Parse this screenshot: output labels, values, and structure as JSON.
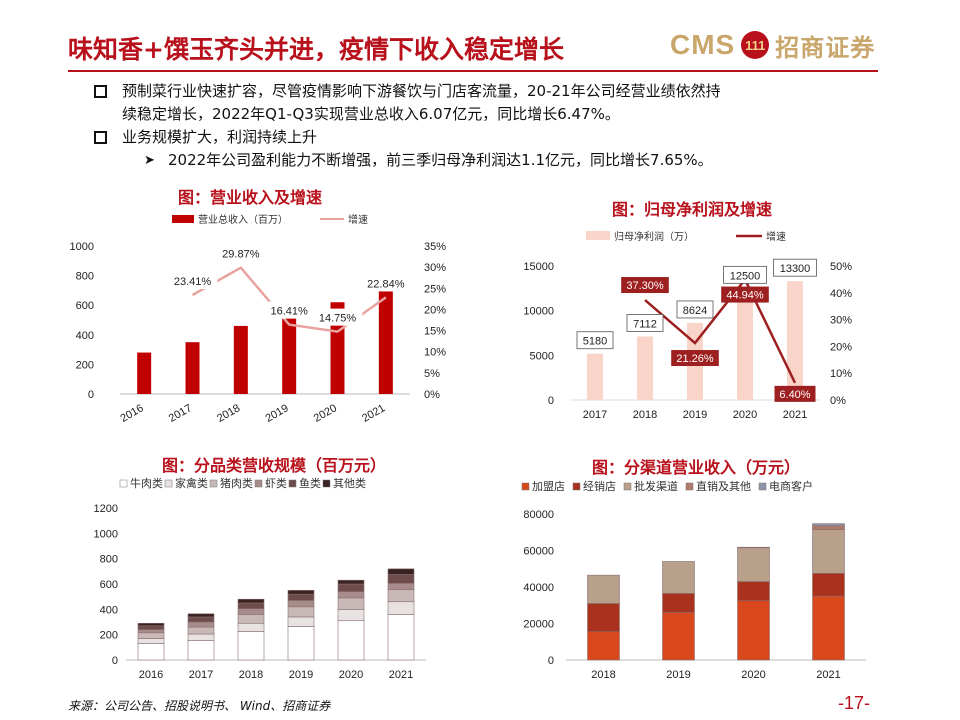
{
  "header": {
    "title": "味知香+馔玉齐头并进，疫情下收入稳定增长",
    "logo_text": "CMS",
    "logo_mark": "111",
    "logo_cn": "招商证券"
  },
  "bullets": {
    "b1": "预制菜行业快速扩容，尽管疫情影响下游餐饮与门店客流量，20-21年公司经营业绩依然持",
    "b1_cont": "续稳定增长，2022年Q1-Q3实现营业总收入6.07亿元，同比增长6.47%。",
    "b2": "业务规模扩大，利润持续上升",
    "b3": "2022年公司盈利能力不断增强，前三季归母净利润达1.1亿元，同比增长7.65%。"
  },
  "footer": {
    "source": "来源：公司公告、招股说明书、 Wind、招商证券",
    "page": "-17-"
  },
  "chart_data": [
    {
      "type": "bar",
      "title": "图：营业收入及增速",
      "categories": [
        "2016",
        "2017",
        "2018",
        "2019",
        "2020",
        "2021"
      ],
      "series": [
        {
          "name": "营业总收入（百万）",
          "type": "bar",
          "axis": "left",
          "color": "#c00000",
          "values": [
            280,
            350,
            460,
            530,
            620,
            700
          ]
        },
        {
          "name": "增速",
          "type": "line",
          "axis": "right",
          "color": "#e8a39e",
          "values": [
            null,
            23.41,
            29.87,
            16.41,
            14.75,
            22.84
          ]
        }
      ],
      "line_labels": [
        "",
        "23.41%",
        "29.87%",
        "16.41%",
        "14.75%",
        "22.84%"
      ],
      "ylim_left": [
        0,
        1000
      ],
      "yticks_left": [
        "0",
        "200",
        "400",
        "600",
        "800",
        "1000"
      ],
      "ylim_right": [
        0,
        35
      ],
      "yticks_right": [
        "0%",
        "5%",
        "10%",
        "15%",
        "20%",
        "25%",
        "30%",
        "35%"
      ]
    },
    {
      "type": "bar",
      "title": "图：归母净利润及增速",
      "categories": [
        "2017",
        "2018",
        "2019",
        "2020",
        "2021"
      ],
      "series": [
        {
          "name": "归母净利润（万）",
          "type": "bar",
          "axis": "left",
          "color": "#f9d4c8",
          "values": [
            5180,
            7112,
            8624,
            12500,
            13300
          ]
        },
        {
          "name": "增速",
          "type": "line",
          "axis": "right",
          "color": "#9e1f1f",
          "values": [
            null,
            37.3,
            21.26,
            44.94,
            6.4
          ]
        }
      ],
      "bar_labels": [
        "5180",
        "7112",
        "8624",
        "12500",
        "13300"
      ],
      "line_labels": [
        "",
        "37.30%",
        "21.26%",
        "44.94%",
        "6.40%"
      ],
      "ylim_left": [
        0,
        15000
      ],
      "yticks_left": [
        "0",
        "5000",
        "10000",
        "15000"
      ],
      "ylim_right": [
        0,
        50
      ],
      "yticks_right": [
        "0%",
        "10%",
        "20%",
        "30%",
        "40%",
        "50%"
      ]
    },
    {
      "type": "bar",
      "stacked": true,
      "title": "图：分品类营收规模（百万元）",
      "categories": [
        "2016",
        "2017",
        "2018",
        "2019",
        "2020",
        "2021"
      ],
      "series": [
        {
          "name": "牛肉类",
          "color": "#ffffff",
          "values": [
            130,
            155,
            225,
            265,
            310,
            360
          ]
        },
        {
          "name": "家禽类",
          "color": "#e8e2e2",
          "values": [
            40,
            50,
            65,
            75,
            90,
            100
          ]
        },
        {
          "name": "猪肉类",
          "color": "#c9b8b8",
          "values": [
            45,
            55,
            70,
            80,
            90,
            95
          ]
        },
        {
          "name": "虾类",
          "color": "#a88c8c",
          "values": [
            25,
            40,
            45,
            50,
            50,
            50
          ]
        },
        {
          "name": "鱼类",
          "color": "#6e4c4c",
          "values": [
            30,
            40,
            45,
            50,
            60,
            70
          ]
        },
        {
          "name": "其他类",
          "color": "#3a2222",
          "values": [
            20,
            25,
            30,
            30,
            30,
            45
          ]
        }
      ],
      "ylim": [
        0,
        1200
      ],
      "yticks": [
        "0",
        "200",
        "400",
        "600",
        "800",
        "1000",
        "1200"
      ]
    },
    {
      "type": "bar",
      "stacked": true,
      "title": "图：分渠道营业收入（万元）",
      "categories": [
        "2018",
        "2019",
        "2020",
        "2021"
      ],
      "series": [
        {
          "name": "加盟店",
          "color": "#d9481c",
          "values": [
            15500,
            26000,
            32500,
            35000
          ]
        },
        {
          "name": "经销店",
          "color": "#a8321e",
          "values": [
            15500,
            10500,
            10500,
            12500
          ]
        },
        {
          "name": "批发渠道",
          "color": "#b8a08a",
          "values": [
            15500,
            17500,
            18500,
            24000
          ]
        },
        {
          "name": "直销及其他",
          "color": "#b07a6a",
          "values": [
            0,
            0,
            300,
            2000
          ]
        },
        {
          "name": "电商客户",
          "color": "#8e94a8",
          "values": [
            0,
            0,
            0,
            1200
          ]
        }
      ],
      "ylim": [
        0,
        80000
      ],
      "yticks": [
        "0",
        "20000",
        "40000",
        "60000",
        "80000"
      ]
    }
  ]
}
